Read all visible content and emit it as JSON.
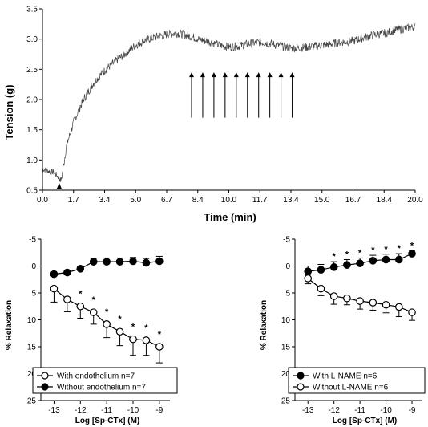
{
  "chart_data": [
    {
      "type": "line",
      "title": "",
      "xlabel": "Time (min)",
      "ylabel": "Tension (g)",
      "xlim": [
        0,
        20
      ],
      "ylim": [
        0.5,
        3.5
      ],
      "x_ticks": [
        "0.0",
        "1.7",
        "3.4",
        "5.0",
        "6.7",
        "8.4",
        "10.0",
        "11.7",
        "13.4",
        "15.0",
        "16.7",
        "18.4",
        "20.0"
      ],
      "y_ticks": [
        "0.5",
        "1.0",
        "1.5",
        "2.0",
        "2.5",
        "3.0",
        "3.5"
      ],
      "series": [
        {
          "x": [
            0,
            0.3,
            0.6,
            0.9,
            1.0,
            1.3,
            1.7,
            2.2,
            2.8,
            3.4,
            4.0,
            4.6,
            5.0,
            5.5,
            6.0,
            6.7,
            7.2,
            7.8,
            8.4,
            9.0,
            9.5,
            10.0,
            10.5,
            11.0,
            11.7,
            12.3,
            13.0,
            13.4,
            14.0,
            14.5,
            15.0,
            15.5,
            16.0,
            16.7,
            17.2,
            17.8,
            18.4,
            19.0,
            19.5,
            20.0
          ],
          "y": [
            0.85,
            0.82,
            0.8,
            0.7,
            0.65,
            1.25,
            1.65,
            2.0,
            2.3,
            2.5,
            2.65,
            2.8,
            2.9,
            2.98,
            3.03,
            3.08,
            3.1,
            3.06,
            3.0,
            2.95,
            2.9,
            2.87,
            2.88,
            2.92,
            2.95,
            2.92,
            2.87,
            2.85,
            2.86,
            2.88,
            2.9,
            2.92,
            2.95,
            2.97,
            3.02,
            3.07,
            3.1,
            3.15,
            3.18,
            3.2
          ]
        }
      ],
      "arrows_x": [
        8.0,
        8.6,
        9.2,
        9.8,
        10.4,
        11.0,
        11.6,
        12.2,
        12.8,
        13.4
      ],
      "arrows_y": [
        1.7,
        2.45
      ],
      "start_marker_x": 0.9
    },
    {
      "type": "line",
      "xlabel": "Log [Sp-CTx] (M)",
      "ylabel": "% Relaxation",
      "xlim": [
        -13.5,
        -8.6
      ],
      "ylim": [
        25,
        -5
      ],
      "x_ticks": [
        "-13",
        "-12",
        "-11",
        "-10",
        "-9"
      ],
      "y_ticks": [
        "-5",
        "0",
        "5",
        "10",
        "15",
        "20",
        "25"
      ],
      "x": [
        -13,
        -12.5,
        -12,
        -11.5,
        -11,
        -10.5,
        -10,
        -9.5,
        -9
      ],
      "series": [
        {
          "name": "With endothelium n=7",
          "marker": "open",
          "values": [
            4.2,
            6.2,
            7.5,
            8.6,
            10.8,
            12.2,
            13.6,
            13.8,
            15.0
          ],
          "errors": [
            2.5,
            2.3,
            2.2,
            2.2,
            2.5,
            2.6,
            3.0,
            2.8,
            3.0
          ],
          "significant": [
            false,
            false,
            true,
            true,
            true,
            true,
            true,
            true,
            true
          ]
        },
        {
          "name": "Without endothelium n=7",
          "marker": "filled",
          "values": [
            1.5,
            1.2,
            0.5,
            -0.8,
            -0.8,
            -0.8,
            -0.9,
            -0.6,
            -0.9
          ],
          "errors": [
            0.3,
            0.3,
            0.4,
            0.6,
            0.7,
            0.7,
            0.7,
            0.8,
            0.9
          ],
          "significant": [
            false,
            false,
            false,
            false,
            false,
            false,
            false,
            false,
            false
          ]
        }
      ]
    },
    {
      "type": "line",
      "xlabel": "Log [Sp-CTx] (M)",
      "ylabel": "% Relaxation",
      "xlim": [
        -13.5,
        -8.6
      ],
      "ylim": [
        25,
        -5
      ],
      "x_ticks": [
        "-13",
        "-12",
        "-11",
        "-10",
        "-9"
      ],
      "y_ticks": [
        "-5",
        "0",
        "5",
        "10",
        "15",
        "20",
        "25"
      ],
      "x": [
        -13,
        -12.5,
        -12,
        -11.5,
        -11,
        -10.5,
        -10,
        -9.5,
        -9
      ],
      "series": [
        {
          "name": "With L-NAME n=6",
          "marker": "filled",
          "values": [
            1.0,
            0.7,
            0.2,
            -0.2,
            -0.5,
            -1.0,
            -1.2,
            -1.2,
            -2.3
          ],
          "errors": [
            1.0,
            1.0,
            1.0,
            1.0,
            1.0,
            1.0,
            1.0,
            1.1,
            0.5
          ],
          "significant": [
            false,
            false,
            true,
            true,
            true,
            true,
            true,
            true,
            true
          ]
        },
        {
          "name": "Without L-NAME n=6",
          "marker": "open",
          "values": [
            2.3,
            4.2,
            5.6,
            6.0,
            6.5,
            6.8,
            7.2,
            7.6,
            8.6
          ],
          "errors": [
            1.0,
            1.3,
            1.5,
            1.2,
            1.5,
            1.4,
            1.5,
            1.8,
            1.5
          ],
          "significant": [
            false,
            false,
            false,
            false,
            false,
            false,
            false,
            false,
            false
          ]
        }
      ]
    }
  ],
  "significance_symbol": "*"
}
